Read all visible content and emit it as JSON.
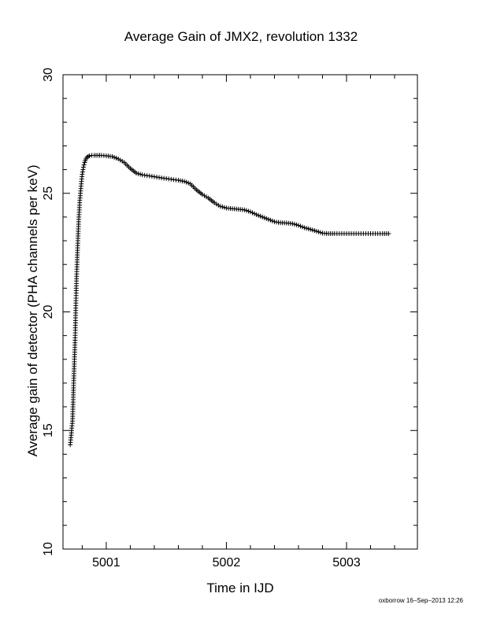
{
  "chart_data": {
    "type": "scatter",
    "title": "Average Gain of JMX2, revolution 1332",
    "xlabel": "Time in IJD",
    "ylabel": "Average gain of detector (PHA channels per keV)",
    "xlim": [
      5000.64,
      5003.59
    ],
    "ylim": [
      10,
      30
    ],
    "x_ticks": [
      5001,
      5002,
      5003
    ],
    "x_tick_labels": [
      "5001",
      "5002",
      "5003"
    ],
    "y_ticks": [
      10,
      15,
      20,
      25,
      30
    ],
    "y_tick_labels": [
      "10",
      "15",
      "20",
      "25",
      "30"
    ],
    "grid": false,
    "legend": "none",
    "marker": "plus",
    "marker_color": "#000000",
    "series": [
      {
        "x": [
          5000.7,
          5000.71,
          5000.72,
          5000.73,
          5000.74,
          5000.75,
          5000.76,
          5000.77,
          5000.78,
          5000.79,
          5000.8,
          5000.81,
          5000.82,
          5000.83,
          5000.84,
          5000.86,
          5000.88,
          5000.9,
          5000.93,
          5000.96,
          5001.0,
          5001.05,
          5001.1,
          5001.15,
          5001.2,
          5001.25,
          5001.3,
          5001.4,
          5001.5,
          5001.6,
          5001.65,
          5001.7,
          5001.75,
          5001.8,
          5001.85,
          5001.9,
          5001.95,
          5002.0,
          5002.05,
          5002.1,
          5002.15,
          5002.2,
          5002.25,
          5002.3,
          5002.35,
          5002.4,
          5002.45,
          5002.5,
          5002.55,
          5002.6,
          5002.65,
          5002.7,
          5002.75,
          5002.8,
          5002.85,
          5002.9,
          5003.0,
          5003.1,
          5003.2,
          5003.3,
          5003.35
        ],
        "y": [
          14.4,
          14.9,
          15.5,
          17.2,
          18.7,
          21.0,
          22.5,
          23.8,
          24.7,
          25.3,
          25.8,
          26.1,
          26.3,
          26.45,
          26.52,
          26.58,
          26.6,
          26.6,
          26.6,
          26.6,
          26.58,
          26.55,
          26.45,
          26.3,
          26.05,
          25.85,
          25.78,
          25.7,
          25.62,
          25.55,
          25.5,
          25.4,
          25.15,
          24.95,
          24.8,
          24.6,
          24.45,
          24.38,
          24.35,
          24.33,
          24.3,
          24.22,
          24.1,
          24.0,
          23.9,
          23.8,
          23.76,
          23.75,
          23.72,
          23.65,
          23.55,
          23.48,
          23.4,
          23.32,
          23.3,
          23.3,
          23.3,
          23.3,
          23.3,
          23.3,
          23.3
        ]
      }
    ]
  },
  "footer": {
    "stamp": "oxborrow 16–Sep–2013 12:26"
  }
}
